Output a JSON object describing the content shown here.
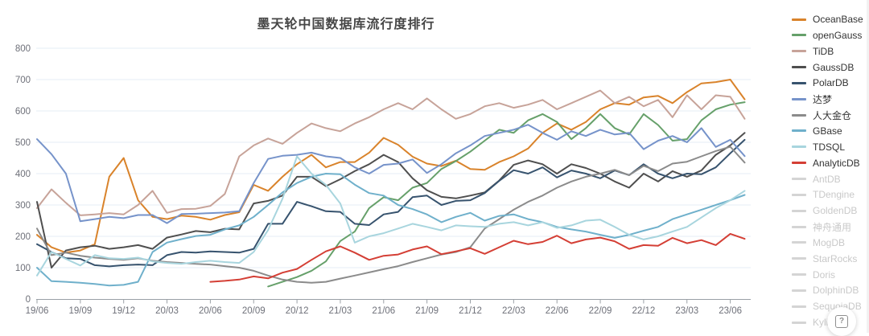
{
  "title": "墨天轮中国数据库流行度排行",
  "help_button": {
    "icon_glyph": "?"
  },
  "chart_data": {
    "type": "line",
    "title": "墨天轮中国数据库流行度排行",
    "xlabel": "",
    "ylabel": "",
    "ylim": [
      0,
      800
    ],
    "y_ticks": [
      0,
      100,
      200,
      300,
      400,
      500,
      600,
      700,
      800
    ],
    "grid": true,
    "legend_position": "right",
    "x_tick_labels": [
      "19/06",
      "19/09",
      "19/12",
      "20/03",
      "20/06",
      "20/09",
      "20/12",
      "21/03",
      "21/06",
      "21/09",
      "21/12",
      "22/03",
      "22/06",
      "22/09",
      "22/12",
      "23/03",
      "23/06"
    ],
    "categories": [
      "19/06",
      "19/07",
      "19/08",
      "19/09",
      "19/10",
      "19/11",
      "19/12",
      "20/01",
      "20/02",
      "20/03",
      "20/04",
      "20/05",
      "20/06",
      "20/07",
      "20/08",
      "20/09",
      "20/10",
      "20/11",
      "20/12",
      "21/01",
      "21/02",
      "21/03",
      "21/04",
      "21/05",
      "21/06",
      "21/07",
      "21/08",
      "21/09",
      "21/10",
      "21/11",
      "21/12",
      "22/01",
      "22/02",
      "22/03",
      "22/04",
      "22/05",
      "22/06",
      "22/07",
      "22/08",
      "22/09",
      "22/10",
      "22/11",
      "22/12",
      "23/01",
      "23/02",
      "23/03",
      "23/04",
      "23/05",
      "23/06",
      "23/07"
    ],
    "series": [
      {
        "name": "OceanBase",
        "color": "#d9832b",
        "enabled": true,
        "values": [
          205,
          165,
          148,
          155,
          175,
          390,
          450,
          315,
          262,
          255,
          266,
          262,
          253,
          268,
          277,
          364,
          345,
          390,
          430,
          460,
          420,
          437,
          437,
          467,
          514,
          492,
          454,
          432,
          424,
          441,
          415,
          412,
          437,
          455,
          480,
          530,
          560,
          540,
          565,
          605,
          625,
          620,
          643,
          648,
          625,
          660,
          688,
          692,
          700,
          637
        ]
      },
      {
        "name": "openGauss",
        "color": "#66a06a",
        "enabled": true,
        "values": [
          null,
          null,
          null,
          null,
          null,
          null,
          null,
          null,
          null,
          null,
          null,
          null,
          null,
          null,
          null,
          null,
          40,
          55,
          70,
          90,
          120,
          185,
          215,
          290,
          325,
          315,
          355,
          370,
          415,
          440,
          470,
          505,
          540,
          530,
          570,
          590,
          565,
          510,
          545,
          590,
          545,
          525,
          590,
          555,
          505,
          510,
          570,
          605,
          620,
          628
        ]
      },
      {
        "name": "TiDB",
        "color": "#c7a399",
        "enabled": true,
        "values": [
          290,
          350,
          307,
          267,
          270,
          274,
          270,
          300,
          345,
          275,
          287,
          288,
          297,
          335,
          455,
          490,
          512,
          495,
          530,
          560,
          545,
          535,
          560,
          580,
          605,
          625,
          605,
          640,
          605,
          575,
          590,
          615,
          625,
          610,
          620,
          635,
          605,
          625,
          645,
          665,
          625,
          645,
          615,
          635,
          580,
          650,
          605,
          650,
          645,
          575
        ]
      },
      {
        "name": "GaussDB",
        "color": "#4f4f4f",
        "enabled": true,
        "values": [
          310,
          100,
          155,
          165,
          170,
          160,
          165,
          172,
          160,
          196,
          206,
          217,
          213,
          224,
          222,
          305,
          313,
          330,
          390,
          390,
          360,
          382,
          408,
          430,
          460,
          437,
          385,
          347,
          326,
          321,
          330,
          340,
          378,
          428,
          442,
          430,
          400,
          430,
          418,
          400,
          375,
          355,
          400,
          375,
          408,
          390,
          410,
          460,
          490,
          530
        ]
      },
      {
        "name": "PolarDB",
        "color": "#37536e",
        "enabled": true,
        "values": [
          175,
          150,
          130,
          128,
          108,
          104,
          108,
          110,
          108,
          140,
          150,
          148,
          152,
          150,
          148,
          160,
          240,
          240,
          310,
          296,
          280,
          278,
          240,
          236,
          270,
          278,
          325,
          330,
          300,
          313,
          315,
          338,
          377,
          411,
          400,
          420,
          388,
          410,
          400,
          385,
          410,
          395,
          430,
          400,
          385,
          400,
          398,
          420,
          465,
          508
        ]
      },
      {
        "name": "达梦",
        "color": "#7693ca",
        "enabled": true,
        "values": [
          510,
          462,
          400,
          248,
          255,
          262,
          258,
          268,
          268,
          242,
          271,
          272,
          274,
          276,
          280,
          370,
          447,
          457,
          460,
          467,
          455,
          450,
          420,
          400,
          428,
          432,
          445,
          402,
          430,
          465,
          490,
          520,
          530,
          540,
          556,
          530,
          508,
          535,
          520,
          540,
          525,
          530,
          478,
          505,
          520,
          500,
          545,
          485,
          508,
          456
        ]
      },
      {
        "name": "人大金仓",
        "color": "#8b8b8b",
        "enabled": true,
        "values": [
          225,
          140,
          148,
          138,
          132,
          128,
          125,
          130,
          122,
          118,
          115,
          112,
          110,
          105,
          100,
          90,
          75,
          62,
          55,
          52,
          55,
          65,
          75,
          85,
          95,
          105,
          118,
          130,
          142,
          150,
          165,
          225,
          255,
          285,
          310,
          330,
          355,
          375,
          390,
          400,
          412,
          395,
          425,
          408,
          432,
          438,
          455,
          472,
          486,
          435
        ]
      },
      {
        "name": "GBase",
        "color": "#6fb0cb",
        "enabled": true,
        "values": [
          100,
          57,
          55,
          52,
          48,
          43,
          45,
          55,
          150,
          180,
          191,
          201,
          205,
          222,
          235,
          262,
          300,
          340,
          370,
          390,
          400,
          398,
          365,
          338,
          330,
          300,
          287,
          270,
          245,
          262,
          275,
          250,
          265,
          270,
          255,
          245,
          230,
          222,
          215,
          205,
          195,
          205,
          218,
          230,
          255,
          270,
          285,
          300,
          315,
          332
        ]
      },
      {
        "name": "TDSQL",
        "color": "#a8d5de",
        "enabled": true,
        "values": [
          75,
          150,
          128,
          107,
          140,
          130,
          128,
          132,
          120,
          115,
          112,
          118,
          122,
          118,
          115,
          150,
          220,
          320,
          455,
          400,
          364,
          305,
          180,
          200,
          210,
          225,
          240,
          230,
          219,
          235,
          232,
          230,
          240,
          245,
          235,
          245,
          227,
          235,
          250,
          253,
          230,
          205,
          190,
          200,
          215,
          230,
          260,
          290,
          315,
          345
        ]
      },
      {
        "name": "AnalyticDB",
        "color": "#d43f35",
        "enabled": true,
        "values": [
          null,
          null,
          null,
          null,
          null,
          null,
          null,
          null,
          null,
          null,
          null,
          null,
          55,
          58,
          62,
          72,
          66,
          84,
          96,
          125,
          152,
          168,
          148,
          125,
          138,
          142,
          158,
          168,
          143,
          152,
          162,
          144,
          165,
          186,
          175,
          182,
          202,
          178,
          190,
          196,
          184,
          160,
          172,
          170,
          195,
          178,
          188,
          172,
          208,
          192
        ]
      }
    ],
    "legend": [
      {
        "label": "OceanBase",
        "color": "#d9832b",
        "enabled": true
      },
      {
        "label": "openGauss",
        "color": "#66a06a",
        "enabled": true
      },
      {
        "label": "TiDB",
        "color": "#c7a399",
        "enabled": true
      },
      {
        "label": "GaussDB",
        "color": "#4f4f4f",
        "enabled": true
      },
      {
        "label": "PolarDB",
        "color": "#37536e",
        "enabled": true
      },
      {
        "label": "达梦",
        "color": "#7693ca",
        "enabled": true
      },
      {
        "label": "人大金仓",
        "color": "#8b8b8b",
        "enabled": true
      },
      {
        "label": "GBase",
        "color": "#6fb0cb",
        "enabled": true
      },
      {
        "label": "TDSQL",
        "color": "#a8d5de",
        "enabled": true
      },
      {
        "label": "AnalyticDB",
        "color": "#d43f35",
        "enabled": true
      },
      {
        "label": "AntDB",
        "color": "#d4d4d4",
        "enabled": false
      },
      {
        "label": "TDengine",
        "color": "#d4d4d4",
        "enabled": false
      },
      {
        "label": "GoldenDB",
        "color": "#d4d4d4",
        "enabled": false
      },
      {
        "label": "神舟通用",
        "color": "#d4d4d4",
        "enabled": false
      },
      {
        "label": "MogDB",
        "color": "#d4d4d4",
        "enabled": false
      },
      {
        "label": "StarRocks",
        "color": "#d4d4d4",
        "enabled": false
      },
      {
        "label": "Doris",
        "color": "#d4d4d4",
        "enabled": false
      },
      {
        "label": "DolphinDB",
        "color": "#d4d4d4",
        "enabled": false
      },
      {
        "label": "SequoiaDB",
        "color": "#d4d4d4",
        "enabled": false
      },
      {
        "label": "Kyligence",
        "color": "#d4d4d4",
        "enabled": false
      }
    ],
    "style": {
      "grid_color": "#e6ecf5",
      "axis_color": "#9aa0a6",
      "tick_text_color": "#6e7079",
      "title_color": "#464646"
    }
  }
}
